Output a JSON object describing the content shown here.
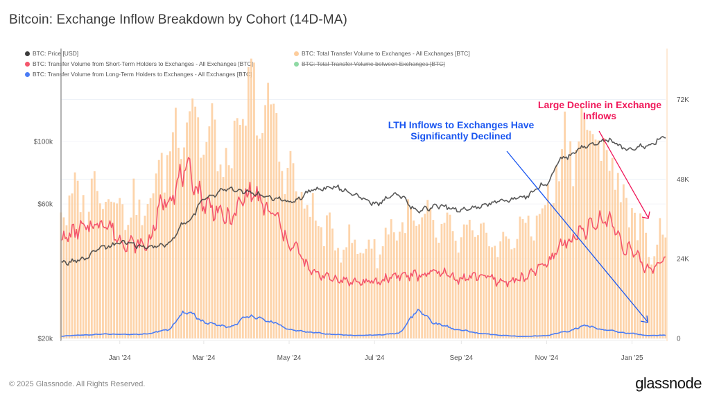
{
  "title": "Bitcoin: Exchange Inflow Breakdown by Cohort (14D-MA)",
  "legend": [
    {
      "label": "BTC: Price [USD]",
      "color": "#3c3c3c",
      "struck": false
    },
    {
      "label": "BTC: Transfer Volume from Short-Term Holders to Exchanges - All Exchanges [BTC]",
      "color": "#f4566c",
      "struck": false
    },
    {
      "label": "BTC: Transfer Volume from Long-Term Holders to Exchanges - All Exchanges [BTC]",
      "color": "#4a7cf5",
      "struck": false
    },
    {
      "label": "BTC: Total Transfer Volume to Exchanges - All Exchanges [BTC]",
      "color": "#fdcd9c",
      "struck": false
    },
    {
      "label": "BTC: Total Transfer Volume between Exchanges [BTC]",
      "color": "#8fd9a4",
      "struck": true
    }
  ],
  "annotations": {
    "blue": "LTH Inflows to Exchanges Have Significantly Declined",
    "red": "Large Decline in Exchange Inflows"
  },
  "footer": {
    "copyright": "© 2025 Glassnode. All Rights Reserved.",
    "logo": "glassnode"
  },
  "chart_data": {
    "type": "bar",
    "title": "Bitcoin: Exchange Inflow Breakdown by Cohort (14D-MA)",
    "x_range": [
      "2023-11-20",
      "2025-01-25"
    ],
    "x_ticks": [
      "Jan '24",
      "Mar '24",
      "May '24",
      "Jul '24",
      "Sep '24",
      "Nov '24",
      "Jan '25"
    ],
    "y_left": {
      "label": "Price [USD]",
      "scale": "log",
      "ticks": [
        "$20k",
        "$60k",
        "$100k"
      ],
      "tick_values": [
        20000,
        60000,
        100000
      ],
      "range": [
        20000,
        100000
      ]
    },
    "y_right": {
      "label": "BTC",
      "scale": "linear",
      "ticks": [
        "0",
        "24K",
        "48K",
        "72K"
      ],
      "tick_values": [
        0,
        24000,
        48000,
        72000
      ],
      "range": [
        0,
        79000
      ]
    },
    "grid": true,
    "legend_position": "top",
    "x": [
      "2023-11-20",
      "2023-12-05",
      "2023-12-20",
      "2024-01-04",
      "2024-01-19",
      "2024-02-03",
      "2024-02-18",
      "2024-03-04",
      "2024-03-19",
      "2024-04-03",
      "2024-04-18",
      "2024-05-03",
      "2024-05-18",
      "2024-06-02",
      "2024-06-17",
      "2024-07-02",
      "2024-07-17",
      "2024-08-01",
      "2024-08-16",
      "2024-08-31",
      "2024-09-15",
      "2024-09-30",
      "2024-10-15",
      "2024-10-30",
      "2024-11-14",
      "2024-11-29",
      "2024-12-14",
      "2024-12-29",
      "2025-01-13",
      "2025-01-25"
    ],
    "series": [
      {
        "name": "BTC: Total Transfer Volume to Exchanges - All Exchanges [BTC]",
        "axis": "right",
        "kind": "bar",
        "color": "#fdcd9c",
        "values": [
          40000,
          42000,
          46000,
          40000,
          38000,
          55000,
          70000,
          60000,
          52000,
          72000,
          66000,
          48000,
          37000,
          30000,
          28000,
          27000,
          34000,
          35000,
          33000,
          30000,
          31000,
          28000,
          33000,
          38000,
          58000,
          62000,
          56000,
          40000,
          28000,
          32000
        ]
      },
      {
        "name": "BTC: Transfer Volume from Short-Term Holders to Exchanges - All Exchanges [BTC]",
        "axis": "right",
        "kind": "line",
        "color": "#f4566c",
        "values": [
          30000,
          33000,
          35000,
          29000,
          28000,
          42000,
          50000,
          40000,
          36000,
          44000,
          38000,
          28000,
          20000,
          18000,
          17000,
          17000,
          19000,
          19000,
          20000,
          18000,
          19000,
          17000,
          18000,
          22000,
          29000,
          33000,
          36000,
          27000,
          21000,
          24000
        ]
      },
      {
        "name": "BTC: Transfer Volume from Long-Term Holders to Exchanges - All Exchanges [BTC]",
        "axis": "right",
        "kind": "line",
        "color": "#4a7cf5",
        "values": [
          700,
          1000,
          1300,
          1200,
          1300,
          2500,
          8000,
          4500,
          3500,
          6800,
          5000,
          2500,
          1800,
          1200,
          900,
          1000,
          1500,
          8000,
          4200,
          2500,
          1500,
          900,
          600,
          800,
          2000,
          3800,
          2500,
          1600,
          900,
          1000
        ]
      },
      {
        "name": "BTC: Price [USD]",
        "axis": "left",
        "kind": "line",
        "color": "#3c3c3c",
        "values": [
          37000,
          38000,
          42000,
          44000,
          42000,
          43000,
          52000,
          64000,
          68000,
          66000,
          63000,
          61000,
          67000,
          69000,
          65000,
          60000,
          65000,
          57000,
          59000,
          57000,
          59000,
          62000,
          63000,
          70000,
          88000,
          96000,
          101000,
          94000,
          97000,
          104000
        ]
      }
    ],
    "annotations": [
      {
        "text": "LTH Inflows to Exchanges Have Significantly Declined",
        "color": "#1a56f0"
      },
      {
        "text": "Large Decline in Exchange Inflows",
        "color": "#f0195a"
      }
    ]
  }
}
